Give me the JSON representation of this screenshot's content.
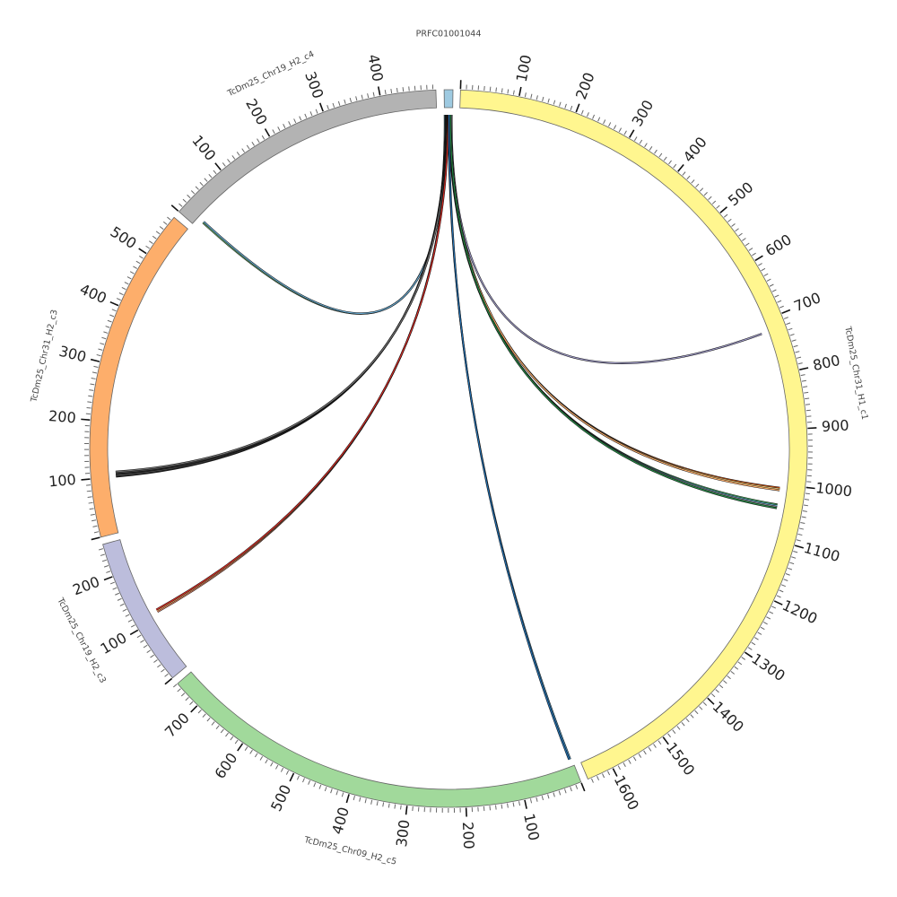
{
  "diagram": {
    "type": "circos",
    "units_per_major_tick": 100,
    "units_per_minor_tick": 10,
    "segments": [
      {
        "id": "prfc",
        "name": "PRFC01001044",
        "length": 15,
        "color": "#9ecae1",
        "ticks": false
      },
      {
        "id": "h1c1",
        "name": "TcDm25_Chr31_H1_c1",
        "length": 1646,
        "color": "#fff68f",
        "ticks": true
      },
      {
        "id": "h2c5",
        "name": "TcDm25_Chr09_H2_c5",
        "length": 750,
        "color": "#a1d99b",
        "ticks": true
      },
      {
        "id": "h2c3b",
        "name": "TcDm25_Chr19_H2_c3",
        "length": 257,
        "color": "#bcbddc",
        "ticks": true
      },
      {
        "id": "h2c3a",
        "name": "TcDm25_Chr31_H2_c3",
        "length": 577,
        "color": "#fdae6b",
        "ticks": true
      },
      {
        "id": "h2c4",
        "name": "TcDm25_Chr19_H2_c4",
        "length": 495,
        "color": "#b3b3b3",
        "ticks": true
      }
    ],
    "links": [
      {
        "from": "prfc",
        "from_pos": 1,
        "to": "h2c4",
        "to_pos": 15,
        "colors": [
          "#74c476",
          "#6baed6"
        ]
      },
      {
        "from": "prfc",
        "from_pos": 13,
        "to": "h1c1",
        "to_pos": 721,
        "colors": [
          "#9e9ac8"
        ]
      },
      {
        "from": "prfc",
        "from_pos": 11,
        "to": "h1c1",
        "to_pos": 1008,
        "colors": [
          "#e6550d",
          "#fee391",
          "#fdae6b"
        ]
      },
      {
        "from": "prfc",
        "from_pos": 10,
        "to": "h1c1",
        "to_pos": 1040,
        "colors": [
          "#41ab5d",
          "#6baed6",
          "#969696",
          "#238b45"
        ]
      },
      {
        "from": "prfc",
        "from_pos": 4,
        "to": "h2c3a",
        "to_pos": 105,
        "colors": [
          "#252525",
          "#636363",
          "#252525",
          "#525252",
          "#737373"
        ]
      },
      {
        "from": "prfc",
        "from_pos": 6,
        "to": "h2c3b",
        "to_pos": 113,
        "colors": [
          "#fc9272",
          "#fdae6b",
          "#de2d26"
        ]
      },
      {
        "from": "prfc",
        "from_pos": 8,
        "to": "h2c5",
        "to_pos": 4,
        "colors": [
          "#4292c6",
          "#2171b5"
        ]
      }
    ]
  }
}
